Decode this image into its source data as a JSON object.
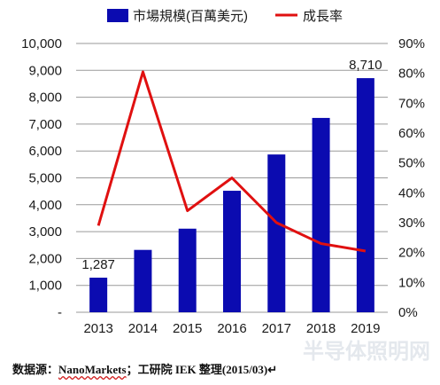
{
  "chart_data": {
    "type": "bar+line",
    "categories": [
      "2013",
      "2014",
      "2015",
      "2016",
      "2017",
      "2018",
      "2019"
    ],
    "series": [
      {
        "name": "市場規模(百萬美元)",
        "type": "bar",
        "axis": "left",
        "color": "#0b0bb0",
        "values": [
          1287,
          2320,
          3110,
          4520,
          5870,
          7230,
          8710
        ]
      },
      {
        "name": "成長率",
        "type": "line",
        "axis": "right",
        "color": "#e01010",
        "values": [
          29,
          80.5,
          34,
          45,
          30,
          23,
          20.5
        ]
      }
    ],
    "data_labels": [
      {
        "index": 0,
        "text": "1,287"
      },
      {
        "index": 6,
        "text": "8,710"
      }
    ],
    "y_left": {
      "ylim": [
        0,
        10000
      ],
      "ticks": [
        0,
        1000,
        2000,
        3000,
        4000,
        5000,
        6000,
        7000,
        8000,
        9000,
        10000
      ],
      "tick_labels": [
        "-",
        "1,000",
        "2,000",
        "3,000",
        "4,000",
        "5,000",
        "6,000",
        "7,000",
        "8,000",
        "9,000",
        "10,000"
      ]
    },
    "y_right": {
      "ylim": [
        0,
        90
      ],
      "ticks": [
        0,
        10,
        20,
        30,
        40,
        50,
        60,
        70,
        80,
        90
      ],
      "tick_labels": [
        "0%",
        "10%",
        "20%",
        "30%",
        "40%",
        "50%",
        "60%",
        "70%",
        "80%",
        "90%"
      ]
    },
    "grid": true,
    "legend_position": "top"
  },
  "source": {
    "prefix": "数据源：",
    "org": "NanoMarkets",
    "rest": "；工研院 IEK 整理(2015/03)",
    "mark": "↵"
  },
  "watermark": {
    "text": "半导体照明网"
  }
}
